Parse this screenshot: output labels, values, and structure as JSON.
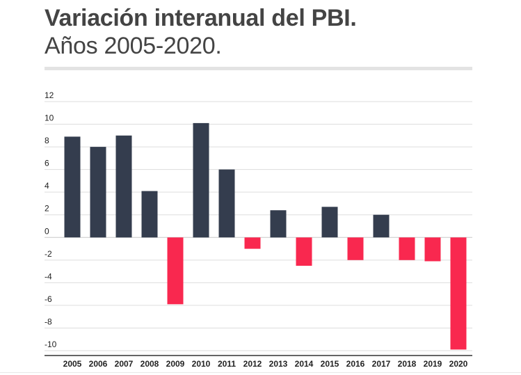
{
  "header": {
    "title": "Variación interanual del PBI.",
    "subtitle": "Años 2005-2020."
  },
  "colors": {
    "positive": "#343d4e",
    "negative": "#f9284f",
    "grid": "#dddddd",
    "text": "#444444"
  },
  "chart_data": {
    "type": "bar",
    "title": "Variación interanual del PBI.",
    "subtitle": "Años 2005-2020.",
    "xlabel": "",
    "ylabel": "",
    "ylim": [
      -10,
      12
    ],
    "yticks": [
      12,
      10,
      8,
      6,
      4,
      2,
      0,
      -2,
      -4,
      -6,
      -8,
      -10
    ],
    "grid": true,
    "categories": [
      "2005",
      "2006",
      "2007",
      "2008",
      "2009",
      "2010",
      "2011",
      "2012",
      "2013",
      "2014",
      "2015",
      "2016",
      "2017",
      "2018",
      "2019",
      "2020"
    ],
    "values": [
      8.9,
      8.0,
      9.0,
      4.1,
      -5.9,
      10.1,
      6.0,
      -1.0,
      2.4,
      -2.5,
      2.7,
      -2.0,
      2.0,
      -2.0,
      -2.1,
      -9.9
    ]
  }
}
